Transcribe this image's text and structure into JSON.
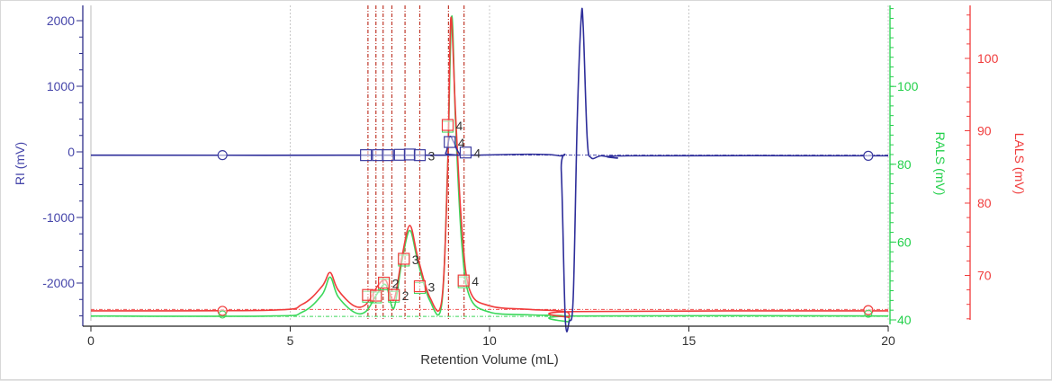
{
  "chart_data": {
    "type": "line",
    "title": "",
    "xlabel": "Retention Volume (mL)",
    "xlim": [
      0,
      20
    ],
    "xticks": [
      "0",
      "5",
      "10",
      "15",
      "20"
    ],
    "grid": "vertical dotted at major x ticks",
    "axes": {
      "ri": {
        "label": "RI (mV)",
        "ylim": [
          -2560,
          2200
        ],
        "ticks": [
          "2000",
          "1000",
          "0",
          "-1000",
          "-2000"
        ],
        "tick_values": [
          2000,
          1000,
          0,
          -1000,
          -2000
        ],
        "color": "#3c3ca0"
      },
      "rals": {
        "label": "RALS (mV)",
        "ylim": [
          40,
          120
        ],
        "ticks": [
          "100",
          "80",
          "60",
          "40"
        ],
        "tick_values": [
          100,
          80,
          60,
          40
        ],
        "color": "#22d04a"
      },
      "lals": {
        "label": "LALS (mV)",
        "ylim": [
          63.8,
          107
        ],
        "ticks": [
          "100",
          "90",
          "80",
          "70"
        ],
        "tick_values": [
          100,
          90,
          80,
          70
        ],
        "color": "#f03c3c"
      }
    },
    "series": [
      {
        "name": "RI",
        "axis": "ri",
        "color": "#2e2e9a",
        "points": [
          [
            0,
            -50
          ],
          [
            8.7,
            -50
          ],
          [
            8.9,
            -20
          ],
          [
            9.0,
            230
          ],
          [
            9.1,
            150
          ],
          [
            9.25,
            -30
          ],
          [
            9.5,
            -50
          ],
          [
            11.7,
            -55
          ],
          [
            11.8,
            -300
          ],
          [
            11.9,
            -2550
          ],
          [
            12.0,
            -2580
          ],
          [
            12.1,
            -2200
          ],
          [
            12.2,
            500
          ],
          [
            12.3,
            2050
          ],
          [
            12.35,
            1900
          ],
          [
            12.45,
            200
          ],
          [
            12.55,
            -90
          ],
          [
            12.8,
            -60
          ],
          [
            13.2,
            -95
          ],
          [
            13.5,
            -60
          ],
          [
            20,
            -60
          ]
        ]
      },
      {
        "name": "RALS",
        "axis": "rals",
        "color": "#3ad85a",
        "points": [
          [
            0,
            41
          ],
          [
            4.5,
            41
          ],
          [
            5.3,
            42
          ],
          [
            5.8,
            46.5
          ],
          [
            6.0,
            51
          ],
          [
            6.2,
            46
          ],
          [
            6.6,
            42
          ],
          [
            6.9,
            42.2
          ],
          [
            7.2,
            47
          ],
          [
            7.4,
            49
          ],
          [
            7.6,
            43
          ],
          [
            7.8,
            55
          ],
          [
            8.0,
            63
          ],
          [
            8.2,
            55
          ],
          [
            8.5,
            45
          ],
          [
            8.8,
            44
          ],
          [
            8.95,
            80
          ],
          [
            9.05,
            118
          ],
          [
            9.15,
            90
          ],
          [
            9.3,
            60
          ],
          [
            9.5,
            46
          ],
          [
            10,
            42
          ],
          [
            11,
            41.3
          ],
          [
            11.9,
            41
          ],
          [
            12.0,
            39.5
          ],
          [
            12.1,
            41
          ],
          [
            20,
            41
          ]
        ]
      },
      {
        "name": "LALS",
        "axis": "lals",
        "color": "#f03c3c",
        "points": [
          [
            0,
            65.1
          ],
          [
            4.5,
            65.2
          ],
          [
            5.3,
            66
          ],
          [
            5.8,
            68.5
          ],
          [
            6.0,
            70.4
          ],
          [
            6.2,
            68
          ],
          [
            6.6,
            65.8
          ],
          [
            6.9,
            66
          ],
          [
            7.2,
            68.6
          ],
          [
            7.4,
            69.3
          ],
          [
            7.6,
            66.6
          ],
          [
            7.8,
            72.5
          ],
          [
            8.0,
            76.9
          ],
          [
            8.2,
            72.5
          ],
          [
            8.5,
            67
          ],
          [
            8.8,
            66.5
          ],
          [
            8.95,
            85
          ],
          [
            9.03,
            105.6
          ],
          [
            9.15,
            92
          ],
          [
            9.3,
            77
          ],
          [
            9.5,
            68
          ],
          [
            10,
            65.8
          ],
          [
            11,
            65.3
          ],
          [
            11.9,
            65.0
          ],
          [
            12.0,
            64.2
          ],
          [
            12.1,
            65.0
          ],
          [
            20,
            65.1
          ]
        ]
      }
    ],
    "markers": {
      "ri": {
        "circles": [
          [
            3.3,
            -50
          ],
          [
            19.5,
            -60
          ]
        ],
        "squares": [
          [
            6.9,
            -50
          ],
          [
            7.2,
            -50
          ],
          [
            7.45,
            -50
          ],
          [
            7.75,
            -45
          ],
          [
            8.0,
            -40
          ],
          [
            8.25,
            -50
          ],
          [
            9.0,
            150
          ],
          [
            9.4,
            -10
          ]
        ],
        "labels": [
          {
            "x": 8.25,
            "y": -50,
            "text": "3"
          },
          {
            "x": 9.0,
            "y": 150,
            "text": "4"
          },
          {
            "x": 9.4,
            "y": -10,
            "text": "4"
          }
        ]
      },
      "lals": {
        "circles": [
          [
            3.3,
            65.1
          ],
          [
            19.5,
            65.2
          ]
        ],
        "squares": [
          [
            6.95,
            67.3
          ],
          [
            7.15,
            67.2
          ],
          [
            7.35,
            69.0
          ],
          [
            7.6,
            67.3
          ],
          [
            7.85,
            72.3
          ],
          [
            8.25,
            68.5
          ],
          [
            8.95,
            90.8
          ],
          [
            9.35,
            69.3
          ]
        ],
        "labels": [
          {
            "x": 7.35,
            "y": 69.0,
            "text": "2"
          },
          {
            "x": 7.6,
            "y": 67.3,
            "text": "2"
          },
          {
            "x": 7.85,
            "y": 72.3,
            "text": "3"
          },
          {
            "x": 8.25,
            "y": 68.5,
            "text": "3"
          },
          {
            "x": 8.95,
            "y": 90.8,
            "text": "4"
          },
          {
            "x": 9.35,
            "y": 69.3,
            "text": "4"
          }
        ]
      }
    },
    "vertical_markers": [
      6.95,
      7.15,
      7.33,
      7.55,
      7.88,
      8.25,
      8.97,
      9.36
    ],
    "baselines": {
      "ri": -50,
      "rals": 40.9,
      "lals": 65.3
    }
  }
}
